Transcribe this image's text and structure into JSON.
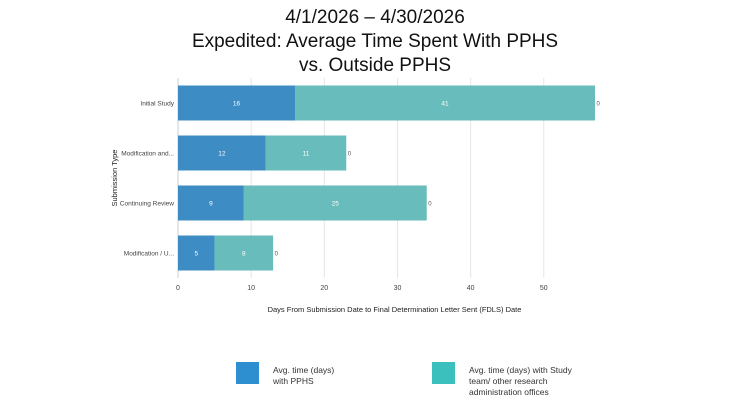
{
  "title_lines": [
    "4/1/2026 – 4/30/2026",
    "Expedited: Average Time Spent With PPHS",
    "vs. Outside PPHS"
  ],
  "chart_data": {
    "type": "bar",
    "orientation": "horizontal",
    "stacked": true,
    "categories": [
      "Initial Study",
      "Modification and...",
      "Continuing Review",
      "Modification / U..."
    ],
    "series": [
      {
        "name": "Avg. time (days)\nwith PPHS",
        "values": [
          16,
          12,
          9,
          5
        ],
        "labels": [
          "16",
          "12",
          "9",
          "5"
        ],
        "color": "#3d8cc4"
      },
      {
        "name": "Avg. time (days) with Study team/ other research administration offices",
        "values": [
          41,
          11,
          25,
          8
        ],
        "labels": [
          "41",
          "11",
          "25",
          "8"
        ],
        "color": "#68bcbc"
      },
      {
        "name": "",
        "values": [
          0,
          0,
          0,
          0
        ],
        "labels": [
          "0",
          "0",
          "0",
          "0"
        ],
        "color": "#dddddd"
      }
    ],
    "xlabel": "Days From Submission Date to Final Determination Letter Sent (FDLS) Date",
    "ylabel": "Submission Type",
    "xlim": [
      0,
      57
    ],
    "xticks": [
      "0",
      "10",
      "20",
      "30",
      "40",
      "50"
    ],
    "grid": true,
    "legend_position": "bottom"
  },
  "legend": [
    {
      "label_lines": [
        "Avg. time (days)",
        "with PPHS"
      ],
      "color": "#2e8fd0"
    },
    {
      "label_lines": [
        "Avg. time (days) with Study",
        "team/ other research",
        "administration offices"
      ],
      "color": "#3cc0bd"
    }
  ]
}
